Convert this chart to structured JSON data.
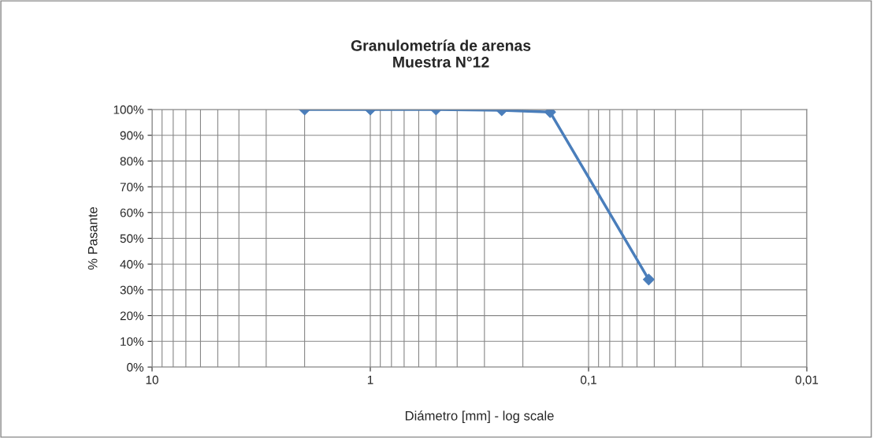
{
  "chart_data": {
    "type": "line",
    "title": "Granulometría de arenas\nMuestra N°12",
    "xlabel": "Diámetro [mm] - log scale",
    "ylabel": "% Pasante",
    "x": [
      2,
      1,
      0.5,
      0.25,
      0.15,
      0.053
    ],
    "series": [
      {
        "color": "#4a7ebb",
        "values": [
          100,
          100,
          100,
          99.7,
          99,
          34
        ]
      }
    ],
    "log": "x",
    "xlim": [
      10,
      0.01
    ],
    "xticks": [
      {
        "value": 10,
        "label": "10"
      },
      {
        "value": 1,
        "label": "1"
      },
      {
        "value": 0.1,
        "label": "0,1"
      },
      {
        "value": 0.01,
        "label": "0,01"
      }
    ],
    "ylim": [
      0,
      100
    ],
    "yticks": [
      {
        "value": 0,
        "label": "0%"
      },
      {
        "value": 10,
        "label": "10%"
      },
      {
        "value": 20,
        "label": "20%"
      },
      {
        "value": 30,
        "label": "30%"
      },
      {
        "value": 40,
        "label": "40%"
      },
      {
        "value": 50,
        "label": "50%"
      },
      {
        "value": 60,
        "label": "60%"
      },
      {
        "value": 70,
        "label": "70%"
      },
      {
        "value": 80,
        "label": "80%"
      },
      {
        "value": 90,
        "label": "90%"
      },
      {
        "value": 100,
        "label": "100%"
      }
    ],
    "grid": true,
    "marker": "diamond",
    "line_style": "solid"
  }
}
